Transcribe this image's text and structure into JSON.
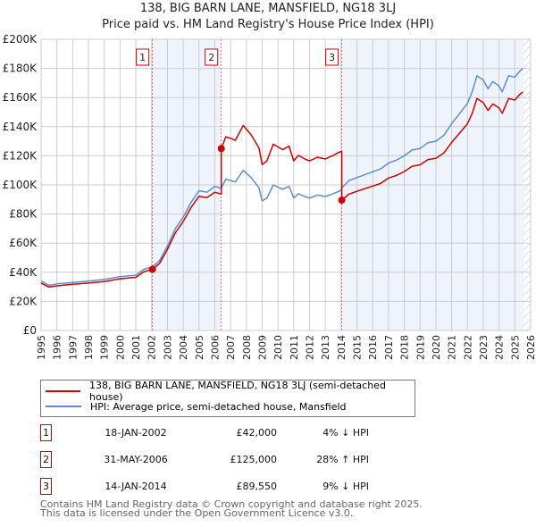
{
  "chart_data": {
    "type": "line",
    "title": "138, BIG BARN LANE, MANSFIELD, NG18 3LJ",
    "subtitle": "Price paid vs. HM Land Registry's House Price Index (HPI)",
    "xlim": [
      1995,
      2026
    ],
    "ylim": [
      0,
      200000
    ],
    "ytick_labels": [
      "£0",
      "£20K",
      "£40K",
      "£60K",
      "£80K",
      "£100K",
      "£120K",
      "£140K",
      "£160K",
      "£180K",
      "£200K"
    ],
    "yticks": [
      0,
      20000,
      40000,
      60000,
      80000,
      100000,
      120000,
      140000,
      160000,
      180000,
      200000
    ],
    "xticks": [
      1995,
      1996,
      1997,
      1998,
      1999,
      2000,
      2001,
      2002,
      2003,
      2004,
      2005,
      2006,
      2007,
      2008,
      2009,
      2010,
      2011,
      2012,
      2013,
      2014,
      2015,
      2016,
      2017,
      2018,
      2019,
      2020,
      2021,
      2022,
      2023,
      2024,
      2025,
      2026
    ],
    "grid": true,
    "legend_placement": "below",
    "series": [
      {
        "name": "138, BIG BARN LANE, MANSFIELD, NG18 3LJ (semi-detached house)",
        "color": "#cc0000",
        "x": [
          1995,
          1995.5,
          1996,
          1997,
          1998,
          1999,
          2000,
          2001,
          2001.5,
          2002.05,
          2002.5,
          2003,
          2003.5,
          2004,
          2004.5,
          2005,
          2005.5,
          2006,
          2006.41,
          2006.41,
          2006.7,
          2007,
          2007.3,
          2007.8,
          2008.3,
          2008.8,
          2009,
          2009.3,
          2009.7,
          2010.3,
          2010.7,
          2011,
          2011.3,
          2011.7,
          2012,
          2012.5,
          2013,
          2013.5,
          2013.95,
          2014.04,
          2014.04,
          2014.5,
          2015,
          2015.5,
          2016,
          2016.5,
          2017,
          2017.5,
          2018,
          2018.5,
          2019,
          2019.5,
          2020,
          2020.5,
          2021,
          2021.5,
          2022,
          2022.3,
          2022.6,
          2023,
          2023.3,
          2023.6,
          2024,
          2024.2,
          2024.6,
          2025,
          2025.3,
          2025.5
        ],
        "values": [
          32600,
          29800,
          30700,
          31700,
          32600,
          33600,
          35500,
          36500,
          40300,
          42000,
          46100,
          55700,
          67200,
          74900,
          84500,
          92200,
          91200,
          95000,
          93700,
          125000,
          133000,
          132000,
          130600,
          140800,
          134400,
          125400,
          113900,
          116500,
          128000,
          124200,
          126700,
          116500,
          120300,
          117800,
          116500,
          119000,
          117800,
          120300,
          122900,
          123000,
          89550,
          93700,
          95600,
          97400,
          99200,
          101000,
          104700,
          106500,
          109200,
          112800,
          113800,
          117400,
          118300,
          121900,
          129200,
          135600,
          142000,
          149200,
          159300,
          156500,
          151100,
          155600,
          152900,
          149200,
          159300,
          158300,
          162000,
          163800
        ]
      },
      {
        "name": "HPI: Average price, semi-detached house, Mansfield",
        "color": "#5b8fd0",
        "x": [
          1995,
          1995.5,
          1996,
          1997,
          1998,
          1999,
          2000,
          2001,
          2001.5,
          2002.05,
          2002.5,
          2003,
          2003.5,
          2004,
          2004.5,
          2005,
          2005.5,
          2006,
          2006.41,
          2006.7,
          2007,
          2007.3,
          2007.8,
          2008.3,
          2008.8,
          2009,
          2009.3,
          2009.7,
          2010.3,
          2010.7,
          2011,
          2011.3,
          2011.7,
          2012,
          2012.5,
          2013,
          2013.5,
          2013.95,
          2014.04,
          2014.5,
          2015,
          2015.5,
          2016,
          2016.5,
          2017,
          2017.5,
          2018,
          2018.5,
          2019,
          2019.5,
          2020,
          2020.5,
          2021,
          2021.5,
          2022,
          2022.3,
          2022.6,
          2023,
          2023.3,
          2023.6,
          2024,
          2024.2,
          2024.6,
          2025,
          2025.3,
          2025.5
        ],
        "values": [
          34000,
          31000,
          32000,
          33000,
          34000,
          35000,
          37000,
          38000,
          42000,
          43700,
          48000,
          58000,
          70000,
          78000,
          88000,
          96000,
          95000,
          99000,
          97600,
          104000,
          103000,
          102000,
          110000,
          105000,
          98000,
          89000,
          91000,
          100000,
          97000,
          99000,
          91000,
          94000,
          92000,
          91000,
          93000,
          92000,
          94000,
          96000,
          98000,
          103000,
          105000,
          107000,
          109000,
          111000,
          115000,
          117000,
          120000,
          124000,
          125000,
          129000,
          130000,
          134000,
          142000,
          149000,
          156000,
          164000,
          175000,
          172000,
          166000,
          171000,
          168000,
          164000,
          175000,
          174000,
          178000,
          180000
        ]
      }
    ],
    "sales": [
      {
        "label": "1",
        "x": 2002.05,
        "value": 42000
      },
      {
        "label": "2",
        "x": 2006.41,
        "value": 125000
      },
      {
        "label": "3",
        "x": 2014.04,
        "value": 89550
      }
    ],
    "shaded_ranges": [
      [
        2002.05,
        2006.41
      ],
      [
        2014.04,
        2025.54
      ]
    ],
    "hatched_from": 2025.54
  },
  "legend": {
    "property": "138, BIG BARN LANE, MANSFIELD, NG18 3LJ (semi-detached house)",
    "hpi": "HPI: Average price, semi-detached house, Mansfield"
  },
  "transactions": [
    {
      "num": "1",
      "date": "18-JAN-2002",
      "price": "£42,000",
      "hpi": "4% ↓ HPI"
    },
    {
      "num": "2",
      "date": "31-MAY-2006",
      "price": "£125,000",
      "hpi": "28% ↑ HPI"
    },
    {
      "num": "3",
      "date": "14-JAN-2014",
      "price": "£89,550",
      "hpi": "9% ↓ HPI"
    }
  ],
  "footer": {
    "line1": "Contains HM Land Registry data © Crown copyright and database right 2025.",
    "line2": "This data is licensed under the Open Government Licence v3.0."
  }
}
